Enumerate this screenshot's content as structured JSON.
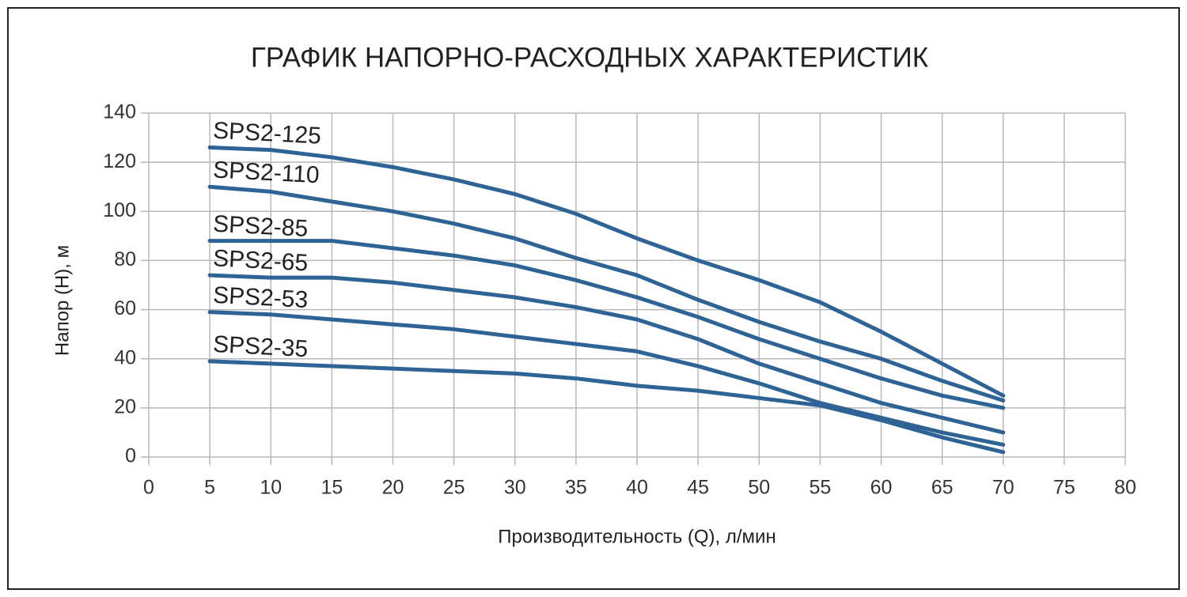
{
  "chart_data": {
    "type": "line",
    "title": "ГРАФИК НАПОРНО-РАСХОДНЫХ ХАРАКТЕРИСТИК",
    "x_label": "Производительность (Q), л/мин",
    "y_label": "Напор (H), м",
    "x": [
      5,
      10,
      15,
      20,
      25,
      30,
      35,
      40,
      45,
      50,
      55,
      60,
      65,
      70
    ],
    "series": [
      {
        "name": "SPS2-125",
        "color": "#2e6395",
        "values": [
          126,
          125,
          122,
          118,
          113,
          107,
          99,
          89,
          80,
          72,
          63,
          51,
          38,
          25
        ]
      },
      {
        "name": "SPS2-110",
        "color": "#2e6395",
        "values": [
          110,
          108,
          104,
          100,
          95,
          89,
          81,
          74,
          64,
          55,
          47,
          40,
          31,
          23
        ]
      },
      {
        "name": "SPS2-85",
        "color": "#2e6395",
        "values": [
          88,
          88,
          88,
          85,
          82,
          78,
          72,
          65,
          57,
          48,
          40,
          32,
          25,
          20
        ]
      },
      {
        "name": "SPS2-65",
        "color": "#2e6395",
        "values": [
          74,
          73,
          73,
          71,
          68,
          65,
          61,
          56,
          48,
          38,
          30,
          22,
          16,
          10
        ]
      },
      {
        "name": "SPS2-53",
        "color": "#2e6395",
        "values": [
          59,
          58,
          56,
          54,
          52,
          49,
          46,
          43,
          37,
          30,
          22,
          16,
          10,
          5
        ]
      },
      {
        "name": "SPS2-35",
        "color": "#2e6395",
        "values": [
          39,
          38,
          37,
          36,
          35,
          34,
          32,
          29,
          27,
          24,
          21,
          15,
          8,
          2
        ]
      }
    ],
    "xlim": [
      0,
      80
    ],
    "xticks": [
      0,
      5,
      10,
      15,
      20,
      25,
      30,
      35,
      40,
      45,
      50,
      55,
      60,
      65,
      70,
      75,
      80
    ],
    "ylim": [
      0,
      140
    ],
    "yticks": [
      0,
      20,
      40,
      60,
      80,
      100,
      120,
      140
    ],
    "grid": true
  }
}
